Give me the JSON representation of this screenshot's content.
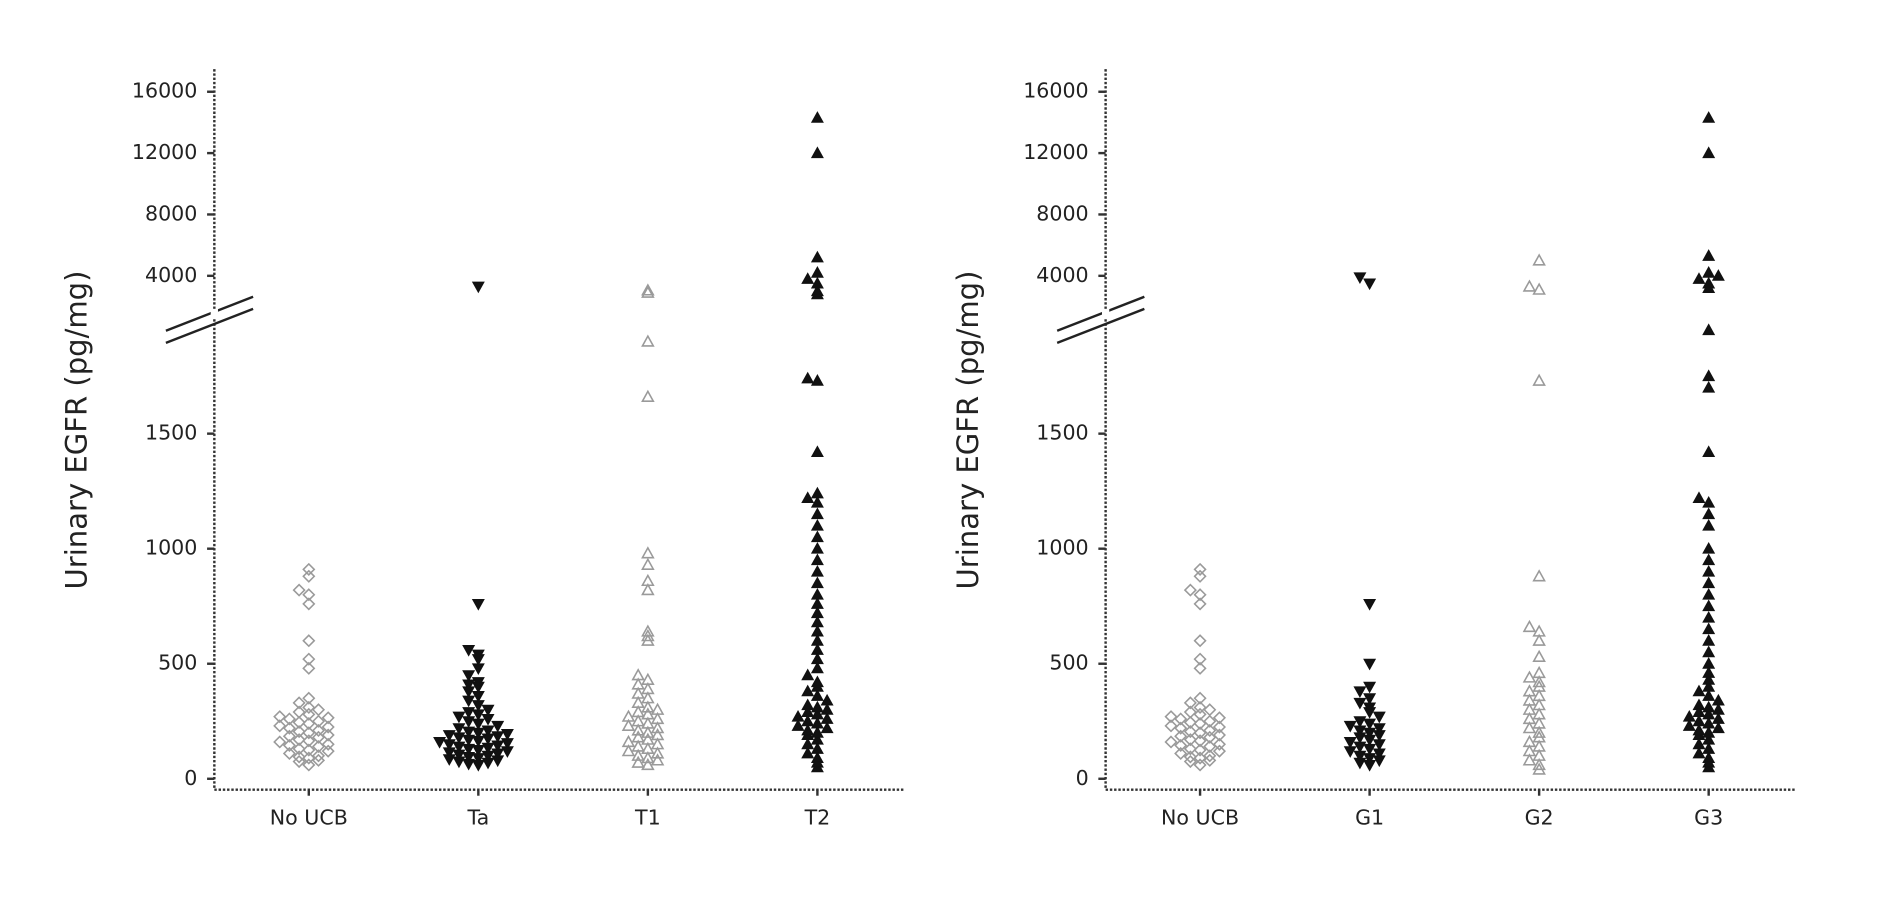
{
  "chart_data": [
    {
      "type": "swarm",
      "ylabel": "Urinary EGFR (pg/mg)",
      "categories": [
        "No UCB",
        "Ta",
        "T1",
        "T2"
      ],
      "markers": [
        "open-diamond",
        "filled-down-triangle",
        "open-triangle",
        "filled-up-triangle"
      ],
      "colors": [
        "#9a9a9a",
        "#111111",
        "#9a9a9a",
        "#111111"
      ],
      "ylim": [
        0,
        2000
      ],
      "yticks": [
        0,
        500,
        1000,
        1500
      ],
      "ylim_upper": [
        2000,
        17000
      ],
      "yticks_upper": [
        4000,
        8000,
        12000,
        16000
      ],
      "values": [
        [
          60,
          75,
          80,
          90,
          95,
          100,
          110,
          120,
          125,
          130,
          140,
          145,
          150,
          160,
          165,
          170,
          180,
          185,
          190,
          200,
          205,
          210,
          220,
          225,
          230,
          240,
          245,
          250,
          260,
          265,
          270,
          280,
          290,
          300,
          310,
          330,
          350,
          480,
          520,
          600,
          760,
          800,
          820,
          880,
          910
        ],
        [
          60,
          65,
          70,
          75,
          80,
          85,
          90,
          95,
          100,
          105,
          110,
          115,
          120,
          125,
          130,
          135,
          140,
          145,
          150,
          155,
          160,
          165,
          170,
          175,
          180,
          185,
          190,
          195,
          200,
          205,
          210,
          220,
          230,
          240,
          250,
          260,
          270,
          280,
          290,
          300,
          320,
          340,
          360,
          380,
          400,
          410,
          420,
          450,
          480,
          520,
          540,
          560,
          760,
          3300
        ],
        [
          60,
          70,
          80,
          90,
          100,
          110,
          120,
          130,
          140,
          150,
          160,
          170,
          180,
          190,
          200,
          210,
          220,
          230,
          240,
          250,
          260,
          270,
          280,
          290,
          300,
          310,
          330,
          350,
          370,
          390,
          410,
          430,
          450,
          600,
          620,
          640,
          820,
          860,
          930,
          980,
          1660,
          1900,
          2900,
          3050
        ],
        [
          50,
          70,
          90,
          110,
          130,
          150,
          170,
          190,
          200,
          210,
          220,
          230,
          240,
          250,
          260,
          270,
          280,
          290,
          300,
          310,
          320,
          340,
          360,
          380,
          400,
          420,
          450,
          480,
          520,
          560,
          600,
          640,
          680,
          720,
          760,
          800,
          850,
          900,
          950,
          1000,
          1050,
          1100,
          1150,
          1200,
          1220,
          1240,
          1420,
          1730,
          1740,
          2800,
          3000,
          3500,
          3800,
          4200,
          5200,
          12000,
          14300
        ]
      ]
    },
    {
      "type": "swarm",
      "ylabel": "Urinary EGFR (pg/mg)",
      "categories": [
        "No UCB",
        "G1",
        "G2",
        "G3"
      ],
      "markers": [
        "open-diamond",
        "filled-down-triangle",
        "open-triangle",
        "filled-up-triangle"
      ],
      "colors": [
        "#9a9a9a",
        "#111111",
        "#9a9a9a",
        "#111111"
      ],
      "ylim": [
        0,
        2000
      ],
      "yticks": [
        0,
        500,
        1000,
        1500
      ],
      "ylim_upper": [
        2000,
        17000
      ],
      "yticks_upper": [
        4000,
        8000,
        12000,
        16000
      ],
      "values": [
        [
          60,
          75,
          80,
          90,
          95,
          100,
          110,
          120,
          125,
          130,
          140,
          145,
          150,
          160,
          165,
          170,
          180,
          185,
          190,
          200,
          205,
          210,
          220,
          225,
          230,
          240,
          245,
          250,
          260,
          265,
          270,
          280,
          290,
          300,
          310,
          330,
          350,
          480,
          520,
          600,
          760,
          800,
          820,
          880,
          910
        ],
        [
          60,
          70,
          80,
          90,
          100,
          110,
          120,
          130,
          140,
          150,
          160,
          170,
          180,
          190,
          200,
          210,
          220,
          230,
          240,
          250,
          270,
          290,
          310,
          330,
          350,
          380,
          400,
          500,
          760,
          3500,
          3900
        ],
        [
          40,
          60,
          80,
          100,
          120,
          140,
          160,
          180,
          200,
          220,
          240,
          260,
          280,
          300,
          320,
          340,
          360,
          380,
          400,
          420,
          440,
          460,
          530,
          600,
          640,
          660,
          880,
          1730,
          3100,
          3300,
          5000
        ],
        [
          50,
          70,
          90,
          110,
          130,
          150,
          170,
          190,
          200,
          210,
          220,
          230,
          240,
          250,
          260,
          270,
          280,
          290,
          300,
          310,
          320,
          340,
          360,
          380,
          400,
          430,
          460,
          500,
          550,
          600,
          650,
          700,
          750,
          800,
          850,
          900,
          950,
          1000,
          1100,
          1150,
          1200,
          1220,
          1420,
          1700,
          1750,
          1950,
          3200,
          3500,
          3800,
          4000,
          4200,
          5300,
          12000,
          14300
        ]
      ]
    }
  ]
}
